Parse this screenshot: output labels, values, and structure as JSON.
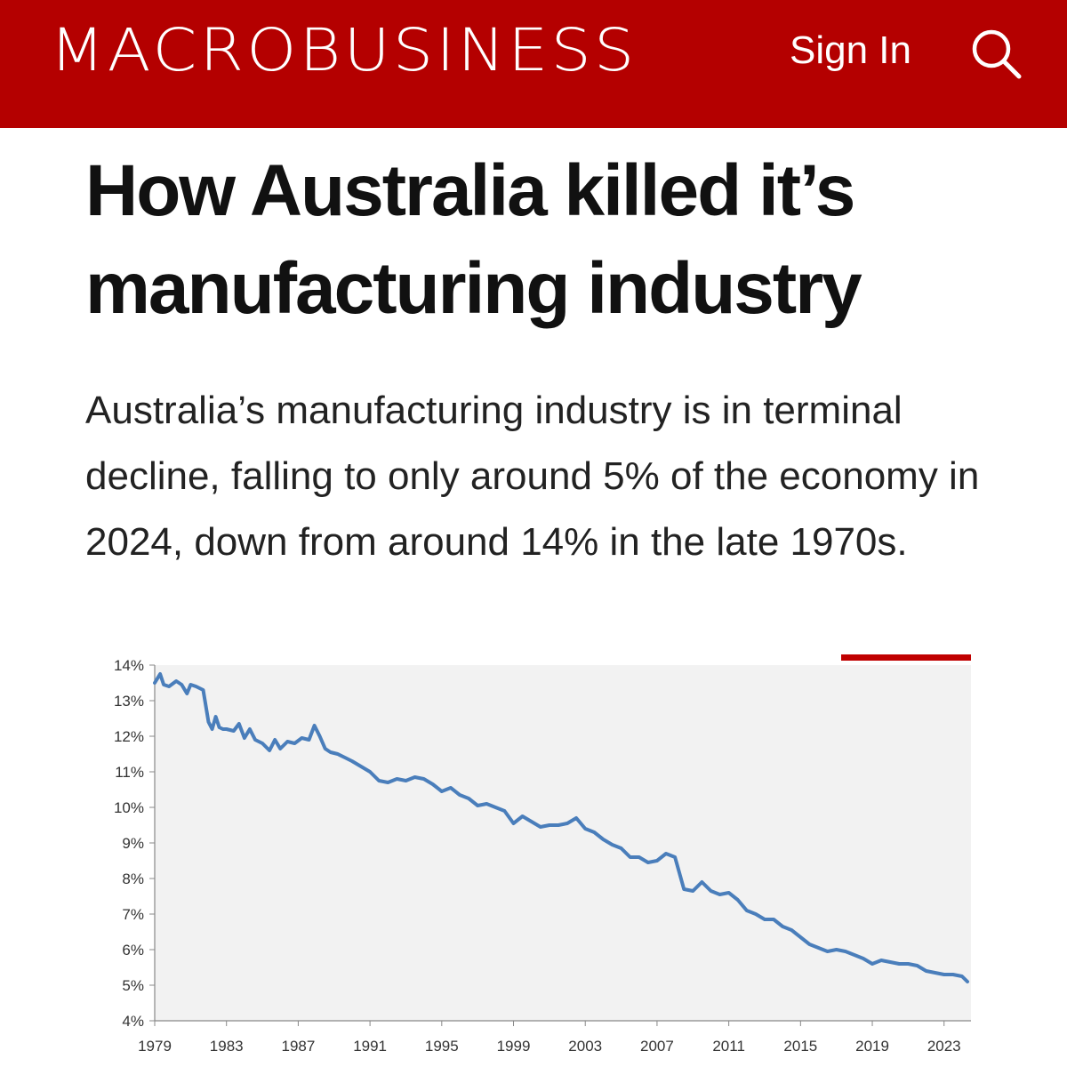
{
  "header": {
    "brand": "MACROBUSINESS",
    "sign_in_label": "Sign In",
    "search_icon": "search-icon",
    "bg_color": "#b40000"
  },
  "article": {
    "headline_line1": "How Australia killed it’s",
    "headline_line2": "manufacturing industry",
    "subhead": "Australia’s manufacturing industry is in terminal decline, falling to only around 5% of the economy in 2024, down from around 14% in the late 1970s."
  },
  "chart_data": {
    "type": "line",
    "title": "",
    "xlabel": "",
    "ylabel": "",
    "ylim": [
      4,
      14
    ],
    "xlim": [
      1979,
      2024.5
    ],
    "y_ticks": [
      "14%",
      "13%",
      "12%",
      "11%",
      "10%",
      "9%",
      "8%",
      "7%",
      "6%",
      "5%",
      "4%"
    ],
    "x_ticks": [
      "1979",
      "1983",
      "1987",
      "1991",
      "1995",
      "1999",
      "2003",
      "2007",
      "2011",
      "2015",
      "2019",
      "2023"
    ],
    "grid": false,
    "legend": "none",
    "line_color": "#4a7ebb",
    "plot_bg": "#f2f2f2",
    "accent_color": "#c00000",
    "series": [
      {
        "x": [
          1979.0,
          1979.3,
          1979.5,
          1979.8,
          1980.2,
          1980.5,
          1980.8,
          1981.0,
          1981.3,
          1981.7,
          1982.0,
          1982.2,
          1982.4,
          1982.6,
          1982.8,
          1983.0,
          1983.4,
          1983.7,
          1984.0,
          1984.3,
          1984.6,
          1985.0,
          1985.4,
          1985.7,
          1986.0,
          1986.4,
          1986.8,
          1987.2,
          1987.6,
          1987.9,
          1988.2,
          1988.5,
          1988.8,
          1989.2,
          1989.6,
          1990.0,
          1990.5,
          1991.0,
          1991.5,
          1992.0,
          1992.5,
          1993.0,
          1993.5,
          1994.0,
          1994.5,
          1995.0,
          1995.5,
          1996.0,
          1996.5,
          1997.0,
          1997.5,
          1998.0,
          1998.5,
          1999.0,
          1999.5,
          2000.0,
          2000.5,
          2001.0,
          2001.5,
          2002.0,
          2002.5,
          2003.0,
          2003.5,
          2004.0,
          2004.5,
          2005.0,
          2005.5,
          2006.0,
          2006.5,
          2007.0,
          2007.5,
          2008.0,
          2008.5,
          2009.0,
          2009.5,
          2010.0,
          2010.5,
          2011.0,
          2011.5,
          2012.0,
          2012.5,
          2013.0,
          2013.5,
          2014.0,
          2014.5,
          2015.0,
          2015.5,
          2016.0,
          2016.5,
          2017.0,
          2017.5,
          2018.0,
          2018.5,
          2019.0,
          2019.5,
          2020.0,
          2020.5,
          2021.0,
          2021.5,
          2022.0,
          2022.5,
          2023.0,
          2023.5,
          2024.0,
          2024.3
        ],
        "y": [
          13.5,
          13.75,
          13.45,
          13.4,
          13.55,
          13.45,
          13.2,
          13.45,
          13.4,
          13.3,
          12.4,
          12.2,
          12.55,
          12.25,
          12.2,
          12.2,
          12.15,
          12.35,
          11.95,
          12.2,
          11.9,
          11.8,
          11.6,
          11.9,
          11.65,
          11.85,
          11.8,
          11.95,
          11.9,
          12.3,
          12.0,
          11.65,
          11.55,
          11.5,
          11.4,
          11.3,
          11.15,
          11.0,
          10.75,
          10.7,
          10.8,
          10.75,
          10.85,
          10.8,
          10.65,
          10.45,
          10.55,
          10.35,
          10.25,
          10.05,
          10.1,
          10.0,
          9.9,
          9.55,
          9.75,
          9.6,
          9.45,
          9.5,
          9.5,
          9.55,
          9.7,
          9.4,
          9.3,
          9.1,
          8.95,
          8.85,
          8.6,
          8.6,
          8.45,
          8.5,
          8.7,
          8.6,
          7.7,
          7.65,
          7.9,
          7.65,
          7.55,
          7.6,
          7.4,
          7.1,
          7.0,
          6.85,
          6.85,
          6.65,
          6.55,
          6.35,
          6.15,
          6.05,
          5.95,
          6.0,
          5.95,
          5.85,
          5.75,
          5.6,
          5.7,
          5.65,
          5.6,
          5.6,
          5.55,
          5.4,
          5.35,
          5.3,
          5.3,
          5.25,
          5.1
        ]
      }
    ]
  }
}
